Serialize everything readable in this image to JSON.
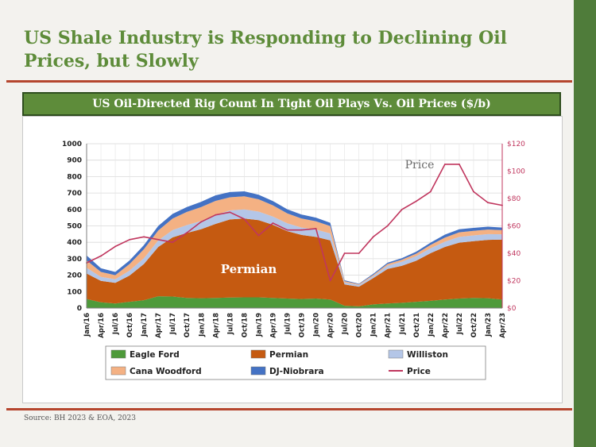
{
  "slide": {
    "title": "US Shale Industry is Responding to Declining Oil Prices, but Slowly",
    "source": "Source: BH 2023 & EOA, 2023"
  },
  "colors": {
    "accent_green": "#5e8c3a",
    "rule": "#b5462e",
    "eagle_ford": "#4e9a3a",
    "permian": "#c55a11",
    "williston": "#b4c6e7",
    "cana_woodford": "#f4b183",
    "dj_niobrara": "#4472c4",
    "price": "#c0365e"
  },
  "chart_data": {
    "type": "area",
    "title": "US Oil-Directed Rig Count In Tight Oil Plays Vs. Oil Prices ($/b)",
    "x_tick_labels": [
      "Jan/16",
      "Apr/16",
      "Jul/16",
      "Oct/16",
      "Jan/17",
      "Apr/17",
      "Jul/17",
      "Oct/17",
      "Jan/18",
      "Apr/18",
      "Jul/18",
      "Oct/18",
      "Jan/19",
      "Apr/19",
      "Jul/19",
      "Oct/19",
      "Jan/20",
      "Apr/20",
      "Jul/20",
      "Oct/20",
      "Jan/21",
      "Apr/21",
      "Jul/21",
      "Oct/21",
      "Jan/22",
      "Apr/22",
      "Jul/22",
      "Oct/22",
      "Jan/23",
      "Apr/23"
    ],
    "y_left": {
      "min": 0,
      "max": 1000,
      "ticks": [
        0,
        100,
        200,
        300,
        400,
        500,
        600,
        700,
        800,
        900,
        1000
      ]
    },
    "y_right": {
      "min": 0,
      "max": 120,
      "ticks": [
        "$0",
        "$20",
        "$40",
        "$60",
        "$80",
        "$100",
        "$120"
      ]
    },
    "grid": true,
    "legend_position": "bottom",
    "annotations": [
      {
        "text": "Permian"
      },
      {
        "text": "Price"
      }
    ],
    "series": [
      {
        "name": "Eagle Ford",
        "axis": "left",
        "stacked": true,
        "values": [
          55,
          35,
          28,
          38,
          48,
          72,
          70,
          62,
          60,
          62,
          64,
          65,
          65,
          62,
          58,
          55,
          58,
          52,
          14,
          10,
          22,
          28,
          32,
          38,
          44,
          52,
          58,
          62,
          60,
          52
        ]
      },
      {
        "name": "Permian",
        "axis": "left",
        "stacked": true,
        "values": [
          155,
          130,
          125,
          160,
          220,
          300,
          360,
          395,
          420,
          450,
          475,
          480,
          470,
          445,
          410,
          390,
          375,
          360,
          130,
          120,
          160,
          210,
          225,
          250,
          290,
          320,
          340,
          345,
          355,
          365
        ]
      },
      {
        "name": "Williston",
        "axis": "left",
        "stacked": true,
        "values": [
          35,
          25,
          22,
          30,
          35,
          40,
          45,
          48,
          50,
          55,
          55,
          55,
          52,
          50,
          48,
          45,
          45,
          42,
          12,
          10,
          12,
          20,
          25,
          28,
          30,
          32,
          35,
          35,
          35,
          32
        ]
      },
      {
        "name": "Cana Woodford",
        "axis": "left",
        "stacked": true,
        "values": [
          45,
          30,
          25,
          40,
          55,
          60,
          70,
          80,
          85,
          85,
          80,
          80,
          75,
          68,
          60,
          55,
          50,
          45,
          8,
          5,
          8,
          10,
          12,
          15,
          20,
          25,
          28,
          28,
          28,
          25
        ]
      },
      {
        "name": "DJ-Niobrara",
        "axis": "left",
        "stacked": true,
        "values": [
          30,
          22,
          20,
          22,
          25,
          28,
          28,
          30,
          32,
          34,
          32,
          30,
          28,
          26,
          25,
          24,
          22,
          20,
          5,
          3,
          6,
          8,
          10,
          12,
          14,
          18,
          18,
          18,
          17,
          16
        ]
      },
      {
        "name": "Price",
        "axis": "right",
        "type": "line",
        "values": [
          33,
          38,
          45,
          50,
          52,
          50,
          48,
          55,
          63,
          68,
          70,
          65,
          53,
          62,
          57,
          57,
          58,
          20,
          40,
          40,
          52,
          60,
          72,
          78,
          85,
          105,
          105,
          85,
          77,
          75
        ]
      }
    ]
  },
  "legend": [
    {
      "name": "Eagle Ford",
      "swatch": "#4e9a3a",
      "kind": "box"
    },
    {
      "name": "Permian",
      "swatch": "#c55a11",
      "kind": "box"
    },
    {
      "name": "Williston",
      "swatch": "#b4c6e7",
      "kind": "box"
    },
    {
      "name": "Cana Woodford",
      "swatch": "#f4b183",
      "kind": "box"
    },
    {
      "name": "DJ-Niobrara",
      "swatch": "#4472c4",
      "kind": "box"
    },
    {
      "name": "Price",
      "swatch": "#c0365e",
      "kind": "line"
    }
  ]
}
